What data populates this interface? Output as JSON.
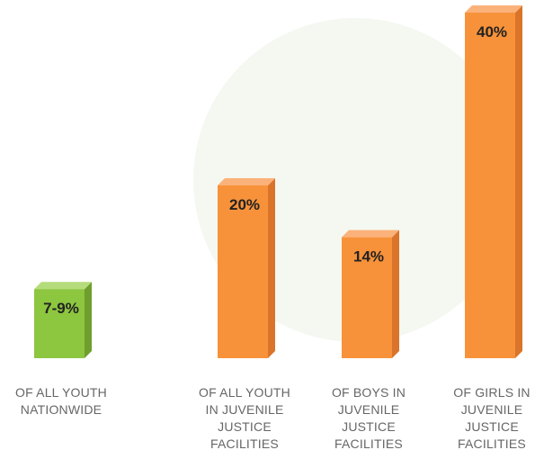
{
  "chart_data": {
    "type": "bar",
    "categories": [
      [
        "OF ALL YOUTH",
        "NATIONWIDE"
      ],
      [
        "OF ALL YOUTH",
        "IN JUVENILE",
        "JUSTICE",
        "FACILITIES"
      ],
      [
        "OF BOYS IN",
        "JUVENILE",
        "JUSTICE",
        "FACILITIES"
      ],
      [
        "OF GIRLS IN",
        "JUVENILE",
        "JUSTICE",
        "FACILITIES"
      ]
    ],
    "values": [
      8,
      20,
      14,
      40
    ],
    "data_labels": [
      "7-9%",
      "20%",
      "14%",
      "40%"
    ],
    "bar_colors": [
      "#8dc63f",
      "#f7923a",
      "#f7923a",
      "#f7923a"
    ],
    "bar_side_colors": [
      "#6f9e2e",
      "#d9742a",
      "#d9742a",
      "#d9742a"
    ],
    "bar_top_colors": [
      "#b5dc7a",
      "#fbb27a",
      "#fbb27a",
      "#fbb27a"
    ],
    "ylim": [
      0,
      40
    ],
    "grid": false,
    "legend": "none"
  }
}
